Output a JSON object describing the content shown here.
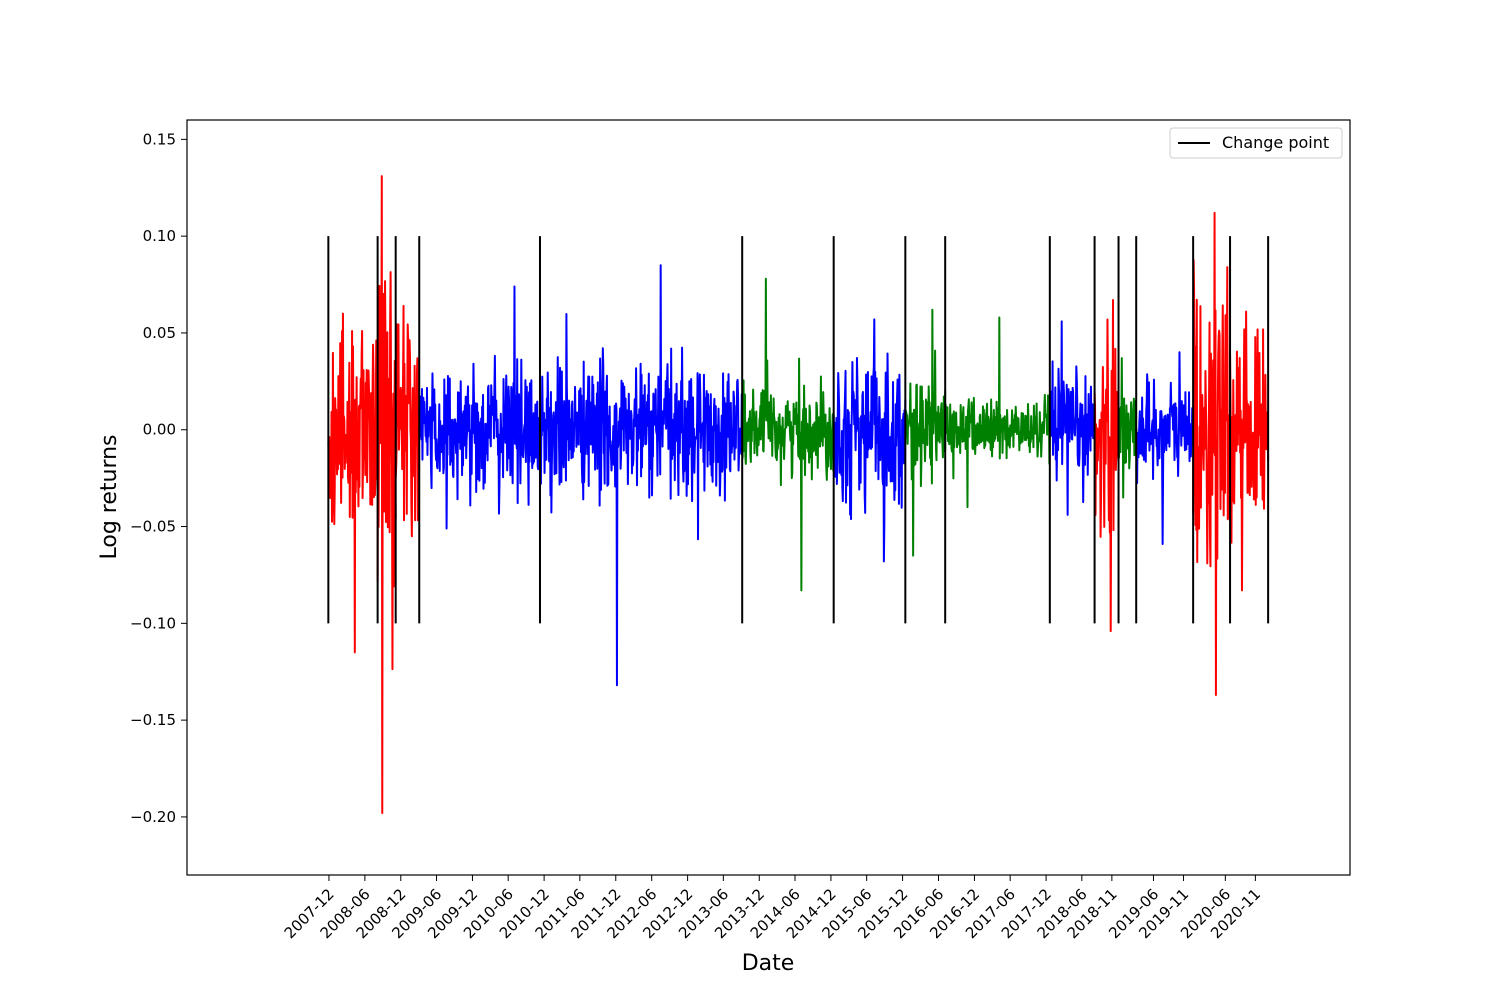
{
  "chart_data": {
    "type": "line",
    "title": "",
    "xlabel": "Date",
    "ylabel": "Log returns",
    "ylim": [
      -0.23,
      0.16
    ],
    "y_ticks": [
      {
        "value": 0.15,
        "label": "0.15"
      },
      {
        "value": 0.1,
        "label": "0.10"
      },
      {
        "value": 0.05,
        "label": "0.05"
      },
      {
        "value": 0.0,
        "label": "0.00"
      },
      {
        "value": -0.05,
        "label": "−0.05"
      },
      {
        "value": -0.1,
        "label": "−0.10"
      },
      {
        "value": -0.15,
        "label": "−0.15"
      },
      {
        "value": -0.2,
        "label": "−0.20"
      }
    ],
    "xlim": [
      "2005-12-08",
      "2022-02-26"
    ],
    "x_ticks": [
      {
        "value": "2007-12-01",
        "label": "2007-12"
      },
      {
        "value": "2008-06-01",
        "label": "2008-06"
      },
      {
        "value": "2008-12-01",
        "label": "2008-12"
      },
      {
        "value": "2009-06-01",
        "label": "2009-06"
      },
      {
        "value": "2009-12-01",
        "label": "2009-12"
      },
      {
        "value": "2010-06-01",
        "label": "2010-06"
      },
      {
        "value": "2010-12-01",
        "label": "2010-12"
      },
      {
        "value": "2011-06-01",
        "label": "2011-06"
      },
      {
        "value": "2011-12-01",
        "label": "2011-12"
      },
      {
        "value": "2012-06-01",
        "label": "2012-06"
      },
      {
        "value": "2012-12-01",
        "label": "2012-12"
      },
      {
        "value": "2013-06-01",
        "label": "2013-06"
      },
      {
        "value": "2013-12-01",
        "label": "2013-12"
      },
      {
        "value": "2014-06-01",
        "label": "2014-06"
      },
      {
        "value": "2014-12-01",
        "label": "2014-12"
      },
      {
        "value": "2015-06-01",
        "label": "2015-06"
      },
      {
        "value": "2015-12-01",
        "label": "2015-12"
      },
      {
        "value": "2016-06-01",
        "label": "2016-06"
      },
      {
        "value": "2016-12-01",
        "label": "2016-12"
      },
      {
        "value": "2017-06-01",
        "label": "2017-06"
      },
      {
        "value": "2017-12-01",
        "label": "2017-12"
      },
      {
        "value": "2018-06-01",
        "label": "2018-06"
      },
      {
        "value": "2018-11-01",
        "label": "2018-11"
      },
      {
        "value": "2019-06-01",
        "label": "2019-06"
      },
      {
        "value": "2019-11-01",
        "label": "2019-11"
      },
      {
        "value": "2020-06-01",
        "label": "2020-06"
      },
      {
        "value": "2020-11-01",
        "label": "2020-11"
      }
    ],
    "legend": {
      "placement": "top-right",
      "entries": [
        {
          "label": "Change point",
          "color": "#000000"
        }
      ]
    },
    "change_points": {
      "dates": [
        "2007-11-28",
        "2008-08-05",
        "2008-11-05",
        "2009-03-05",
        "2010-11-10",
        "2013-09-05",
        "2014-12-15",
        "2015-12-15",
        "2016-07-05",
        "2017-12-20",
        "2018-08-05",
        "2018-12-05",
        "2019-03-05",
        "2019-12-20",
        "2020-06-25",
        "2021-01-05"
      ],
      "y_range": [
        -0.1,
        0.1
      ],
      "color": "#000000"
    },
    "regime_colors": {
      "red": "#ff0000",
      "blue": "#0000ff",
      "green": "#008000"
    },
    "segments": [
      {
        "start": "2007-11-28",
        "end": "2008-08-05",
        "color": "red",
        "min": -0.115,
        "max": 0.06,
        "spread": 0.025
      },
      {
        "start": "2008-08-05",
        "end": "2008-11-05",
        "color": "red",
        "min": -0.198,
        "max": 0.131,
        "spread": 0.045
      },
      {
        "start": "2008-11-05",
        "end": "2009-03-05",
        "color": "red",
        "min": -0.055,
        "max": 0.064,
        "spread": 0.03
      },
      {
        "start": "2009-03-05",
        "end": "2010-11-10",
        "color": "blue",
        "min": -0.051,
        "max": 0.074,
        "spread": 0.016
      },
      {
        "start": "2010-11-10",
        "end": "2013-09-05",
        "color": "blue",
        "min": -0.132,
        "max": 0.085,
        "spread": 0.017
      },
      {
        "start": "2013-09-05",
        "end": "2014-12-15",
        "color": "green",
        "min": -0.083,
        "max": 0.078,
        "spread": 0.011
      },
      {
        "start": "2014-12-15",
        "end": "2015-12-15",
        "color": "blue",
        "min": -0.068,
        "max": 0.057,
        "spread": 0.018
      },
      {
        "start": "2015-12-15",
        "end": "2016-07-05",
        "color": "green",
        "min": -0.065,
        "max": 0.062,
        "spread": 0.012
      },
      {
        "start": "2016-07-05",
        "end": "2017-12-20",
        "color": "green",
        "min": -0.04,
        "max": 0.058,
        "spread": 0.008
      },
      {
        "start": "2017-12-20",
        "end": "2018-08-05",
        "color": "blue",
        "min": -0.044,
        "max": 0.056,
        "spread": 0.013
      },
      {
        "start": "2018-08-05",
        "end": "2018-12-05",
        "color": "red",
        "min": -0.104,
        "max": 0.067,
        "spread": 0.025
      },
      {
        "start": "2018-12-05",
        "end": "2019-03-05",
        "color": "green",
        "min": -0.035,
        "max": 0.037,
        "spread": 0.01
      },
      {
        "start": "2019-03-05",
        "end": "2019-12-20",
        "color": "blue",
        "min": -0.059,
        "max": 0.04,
        "spread": 0.013
      },
      {
        "start": "2019-12-20",
        "end": "2020-06-25",
        "color": "red",
        "min": -0.137,
        "max": 0.112,
        "spread": 0.035
      },
      {
        "start": "2020-06-25",
        "end": "2021-01-05",
        "color": "red",
        "min": -0.083,
        "max": 0.061,
        "spread": 0.022
      }
    ]
  }
}
